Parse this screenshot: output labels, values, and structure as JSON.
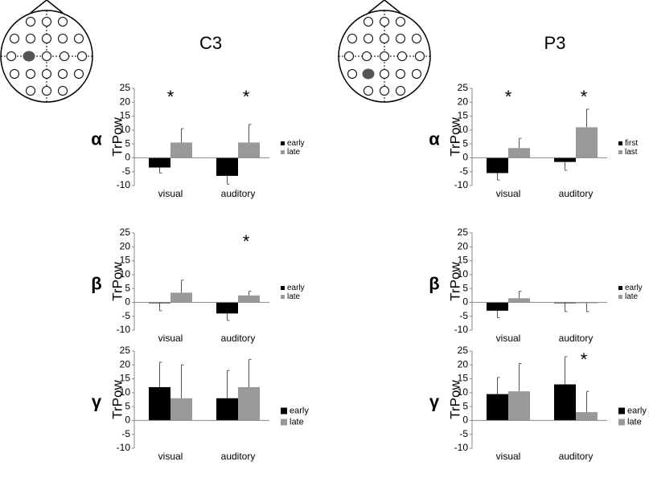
{
  "column_titles": [
    "C3",
    "P3"
  ],
  "chart_data": [
    {
      "type": "bar",
      "band": "α",
      "ylabel": "TrPow",
      "categories": [
        "visual",
        "auditory"
      ],
      "series": [
        {
          "name": "early",
          "color": "#000000",
          "values": [
            -3.5,
            -6.5
          ],
          "errors": [
            2,
            3
          ]
        },
        {
          "name": "late",
          "color": "#999999",
          "values": [
            5.5,
            5.5
          ],
          "errors": [
            5,
            6.5
          ]
        }
      ],
      "annotations": [
        "*",
        "*"
      ],
      "ylim": [
        -10,
        25
      ],
      "yticks": [
        -10,
        -5,
        0,
        5,
        10,
        15,
        20,
        25
      ]
    },
    {
      "type": "bar",
      "band": "β",
      "ylabel": "TrPow",
      "categories": [
        "visual",
        "auditory"
      ],
      "series": [
        {
          "name": "early",
          "color": "#000000",
          "values": [
            -0.3,
            -4
          ],
          "errors": [
            2.7,
            2.5
          ]
        },
        {
          "name": "late",
          "color": "#999999",
          "values": [
            3.5,
            2.5
          ],
          "errors": [
            4.5,
            1.5
          ]
        }
      ],
      "annotations": [
        null,
        "*"
      ],
      "ylim": [
        -10,
        25
      ],
      "yticks": [
        -10,
        -5,
        0,
        5,
        10,
        15,
        20,
        25
      ]
    },
    {
      "type": "bar",
      "band": "γ",
      "ylabel": "TrPow",
      "categories": [
        "visual",
        "auditory"
      ],
      "series": [
        {
          "name": "early",
          "color": "#000000",
          "values": [
            12,
            8
          ],
          "errors": [
            9,
            10
          ]
        },
        {
          "name": "late",
          "color": "#999999",
          "values": [
            8,
            12
          ],
          "errors": [
            12,
            10
          ]
        }
      ],
      "annotations": [
        null,
        null
      ],
      "ylim": [
        -10,
        25
      ],
      "yticks": [
        -10,
        -5,
        0,
        5,
        10,
        15,
        20,
        25
      ]
    },
    {
      "type": "bar",
      "band": "α",
      "ylabel": "TrPow",
      "categories": [
        "visual",
        "auditory"
      ],
      "series": [
        {
          "name": "first",
          "color": "#000000",
          "values": [
            -5.5,
            -1.5
          ],
          "errors": [
            2.5,
            3
          ]
        },
        {
          "name": "last",
          "color": "#999999",
          "values": [
            3.5,
            11
          ],
          "errors": [
            3.5,
            6.5
          ]
        }
      ],
      "annotations": [
        "*",
        "*"
      ],
      "ylim": [
        -10,
        25
      ],
      "yticks": [
        -10,
        -5,
        0,
        5,
        10,
        15,
        20,
        25
      ]
    },
    {
      "type": "bar",
      "band": "β",
      "ylabel": "TrPow",
      "categories": [
        "visual",
        "auditory"
      ],
      "series": [
        {
          "name": "early",
          "color": "#000000",
          "values": [
            -3,
            -0.3
          ],
          "errors": [
            2.5,
            3
          ]
        },
        {
          "name": "late",
          "color": "#999999",
          "values": [
            1.5,
            -0.3
          ],
          "errors": [
            2.5,
            3
          ]
        }
      ],
      "annotations": [
        null,
        null
      ],
      "ylim": [
        -10,
        25
      ],
      "yticks": [
        -10,
        -5,
        0,
        5,
        10,
        15,
        20,
        25
      ]
    },
    {
      "type": "bar",
      "band": "γ",
      "ylabel": "TrPow",
      "categories": [
        "visual",
        "auditory"
      ],
      "series": [
        {
          "name": "early",
          "color": "#000000",
          "values": [
            9.5,
            13
          ],
          "errors": [
            6,
            10
          ]
        },
        {
          "name": "late",
          "color": "#999999",
          "values": [
            10.5,
            3
          ],
          "errors": [
            10,
            7.5
          ]
        }
      ],
      "annotations": [
        null,
        "*"
      ],
      "ylim": [
        -10,
        25
      ],
      "yticks": [
        -10,
        -5,
        0,
        5,
        10,
        15,
        20,
        25
      ]
    }
  ]
}
